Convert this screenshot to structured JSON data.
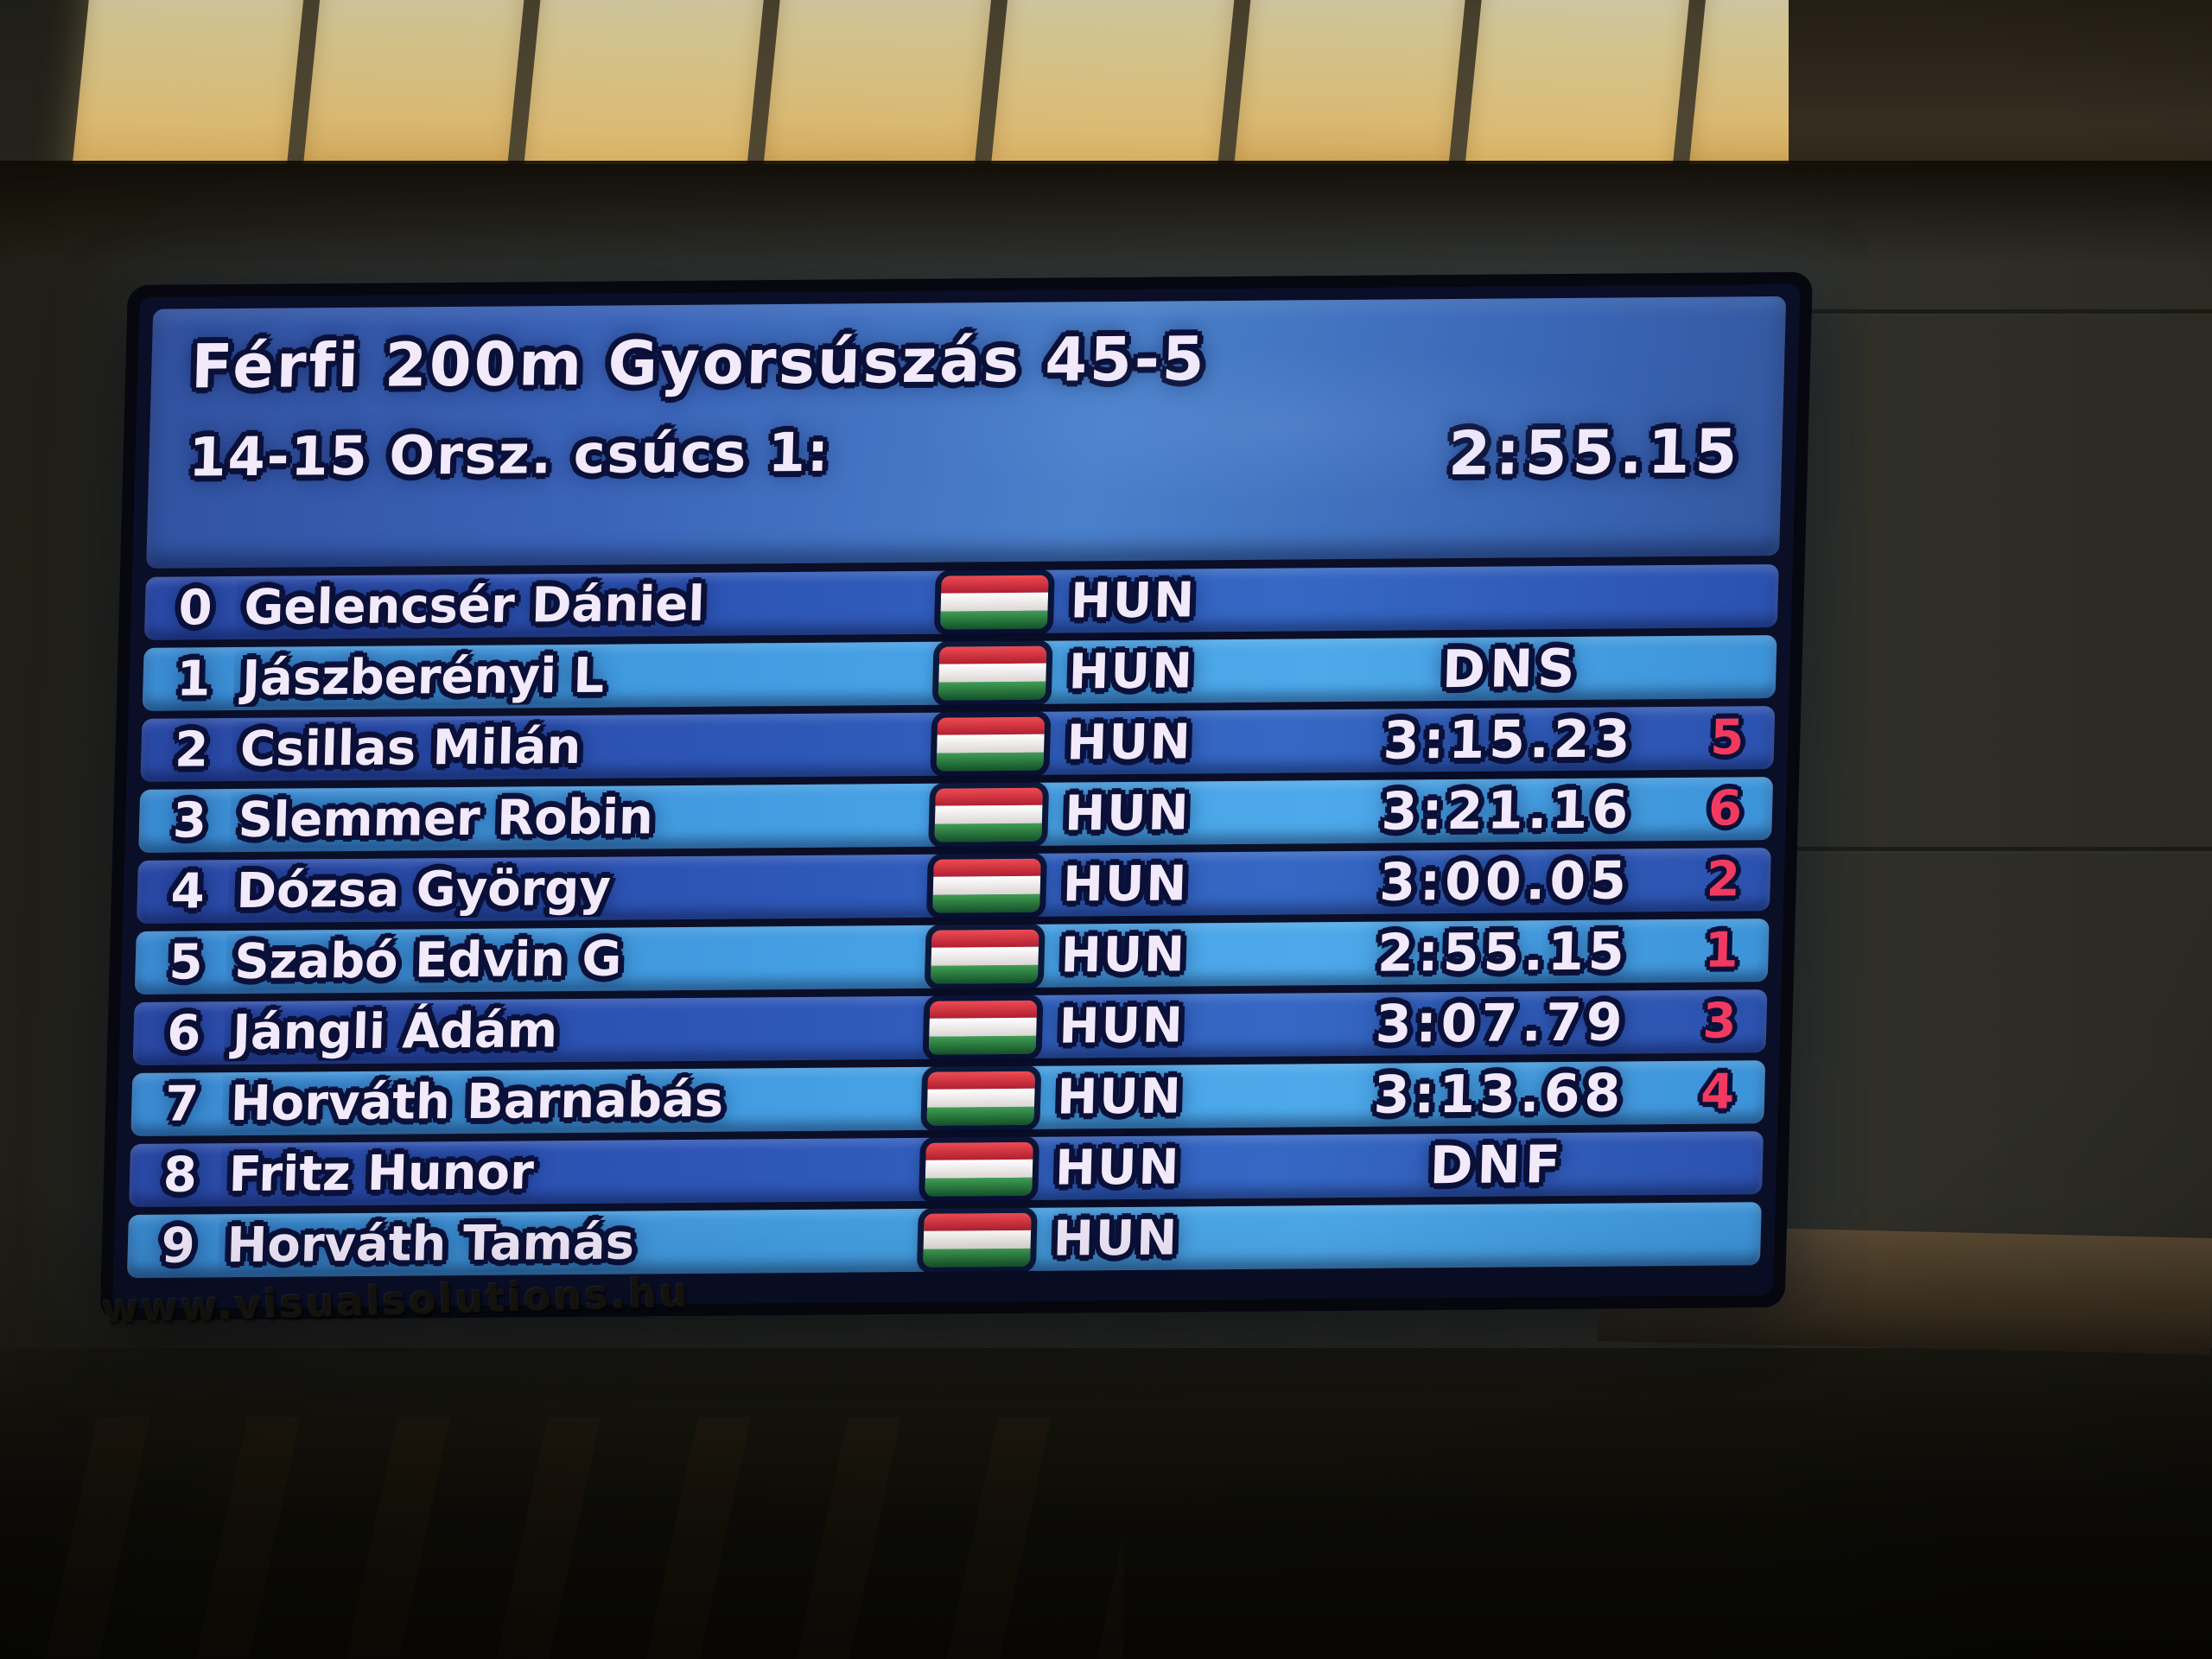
{
  "scoreboard": {
    "title": "Férfi 200m Gyorsúszás 45-5",
    "record": {
      "label": "14-15 Orsz. csúcs 1:",
      "value": "2:55.15"
    },
    "flag_icon": "hungary-flag",
    "rows": [
      {
        "lane": "0",
        "name": "Gelencsér Dániel",
        "nation": "HUN",
        "time": "",
        "place": ""
      },
      {
        "lane": "1",
        "name": "Jászberényi L",
        "nation": "HUN",
        "time": "DNS",
        "place": ""
      },
      {
        "lane": "2",
        "name": "Csillas Milán",
        "nation": "HUN",
        "time": "3:15.23",
        "place": "5"
      },
      {
        "lane": "3",
        "name": "Slemmer Robin",
        "nation": "HUN",
        "time": "3:21.16",
        "place": "6"
      },
      {
        "lane": "4",
        "name": "Dózsa György",
        "nation": "HUN",
        "time": "3:00.05",
        "place": "2"
      },
      {
        "lane": "5",
        "name": "Szabó Edvin G",
        "nation": "HUN",
        "time": "2:55.15",
        "place": "1"
      },
      {
        "lane": "6",
        "name": "Jángli Ádám",
        "nation": "HUN",
        "time": "3:07.79",
        "place": "3"
      },
      {
        "lane": "7",
        "name": "Horváth Barnabás",
        "nation": "HUN",
        "time": "3:13.68",
        "place": "4"
      },
      {
        "lane": "8",
        "name": "Fritz Hunor",
        "nation": "HUN",
        "time": "DNF",
        "place": ""
      },
      {
        "lane": "9",
        "name": "Horváth Tamás",
        "nation": "HUN",
        "time": "",
        "place": ""
      }
    ],
    "colors": {
      "row_dark": "#2d55b6",
      "row_light": "#45a0e4",
      "place_red": "#f23a60",
      "flag_red": "#d8323f",
      "flag_white": "#f6f1ee",
      "flag_green": "#2f8040",
      "text": "#f2e9fb",
      "text_outline": "#0a1038"
    }
  },
  "watermark": {
    "text": "www.visualsolutions.hu"
  }
}
